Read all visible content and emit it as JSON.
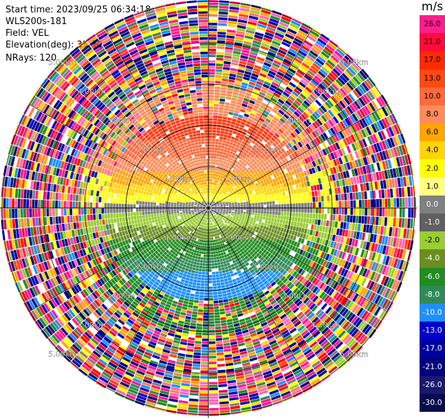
{
  "header": {
    "start_time": "Start time: 2023/09/25 06:34:18",
    "instrument": "WLS200s-181",
    "field": "Field: VEL",
    "elevation": "Elevation(deg): 35.30",
    "nrays": "NRays: 120"
  },
  "colorbar": {
    "unit": "m/s",
    "ticks": [
      "26.0",
      "21.0",
      "17.0",
      "13.0",
      "10.0",
      "8.0",
      "6.0",
      "4.0",
      "2.0",
      "1.0",
      "0.0",
      "-1.0",
      "-2.0",
      "-4.0",
      "-6.0",
      "-8.0",
      "-10.0",
      "-13.0",
      "-17.0",
      "-21.0",
      "-26.0",
      "-30.0"
    ],
    "colors": [
      "#ff1e8c",
      "#ff0a3c",
      "#ff2a00",
      "#ff4a10",
      "#ff6a3c",
      "#ff8c5a",
      "#ffa500",
      "#ffd400",
      "#ffff00",
      "#ffff80",
      "#808080",
      "#606060",
      "#9acd32",
      "#6b8e23",
      "#228b22",
      "#2e8b57",
      "#1e90ff",
      "#0000cd",
      "#0000a0",
      "#000080",
      "#191970",
      "#0a0a50"
    ]
  },
  "range_rings": {
    "labels": [
      "1.00km",
      "2.00km",
      "3.00km",
      "4.00km",
      "5.00km"
    ]
  },
  "noise_palette": [
    "#ff1493",
    "#ff1e8c",
    "#dc143c",
    "#ff0000",
    "#ff4500",
    "#ffa500",
    "#ffd700",
    "#ffff00",
    "#9acd32",
    "#228b22",
    "#2e8b57",
    "#1e90ff",
    "#0000cd",
    "#000080",
    "#191970",
    "#ff69b4",
    "#ffffff",
    "#808080",
    "#00008b",
    "#ff7f50"
  ],
  "field_colors": {
    "far_red": "#ff3c14",
    "red": "#ff6a3c",
    "salmon": "#ff8c5a",
    "orange": "#ffa500",
    "yellow_orange": "#ffd400",
    "yellow": "#ffff00",
    "gray": "#808080",
    "yellow_green": "#9acd32",
    "olive": "#6b8e23",
    "green": "#228b22",
    "sea_green": "#2e8b57",
    "blue": "#1e90ff"
  }
}
